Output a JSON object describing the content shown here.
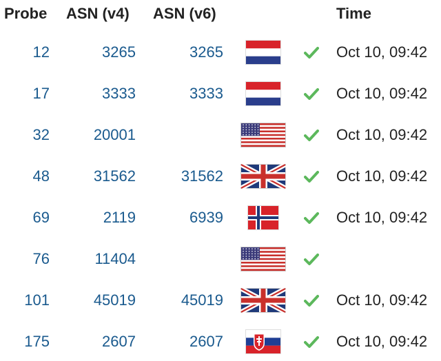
{
  "headers": {
    "probe": "Probe",
    "asn_v4": "ASN (v4)",
    "asn_v6": "ASN (v6)",
    "country": "",
    "status": "",
    "time": "Time"
  },
  "rows": [
    {
      "probe": "12",
      "asn_v4": "3265",
      "asn_v6": "3265",
      "flag": "nl-flag",
      "status": "check-icon",
      "time": "Oct 10, 09:42"
    },
    {
      "probe": "17",
      "asn_v4": "3333",
      "asn_v6": "3333",
      "flag": "nl-flag",
      "status": "check-icon",
      "time": "Oct 10, 09:42"
    },
    {
      "probe": "32",
      "asn_v4": "20001",
      "asn_v6": "",
      "flag": "us-flag",
      "status": "check-icon",
      "time": "Oct 10, 09:42"
    },
    {
      "probe": "48",
      "asn_v4": "31562",
      "asn_v6": "31562",
      "flag": "gb-flag",
      "status": "check-icon",
      "time": "Oct 10, 09:42"
    },
    {
      "probe": "69",
      "asn_v4": "2119",
      "asn_v6": "6939",
      "flag": "no-flag",
      "status": "check-icon",
      "time": "Oct 10, 09:42"
    },
    {
      "probe": "76",
      "asn_v4": "11404",
      "asn_v6": "",
      "flag": "us-flag",
      "status": "check-icon",
      "time": ""
    },
    {
      "probe": "101",
      "asn_v4": "45019",
      "asn_v6": "45019",
      "flag": "gb-flag",
      "status": "check-icon",
      "time": "Oct 10, 09:42"
    },
    {
      "probe": "175",
      "asn_v4": "2607",
      "asn_v6": "2607",
      "flag": "sk-flag",
      "status": "check-icon",
      "time": "Oct 10, 09:42"
    }
  ],
  "colors": {
    "link": "#1a5a8e",
    "check": "#5cb85c",
    "text": "#222222"
  }
}
